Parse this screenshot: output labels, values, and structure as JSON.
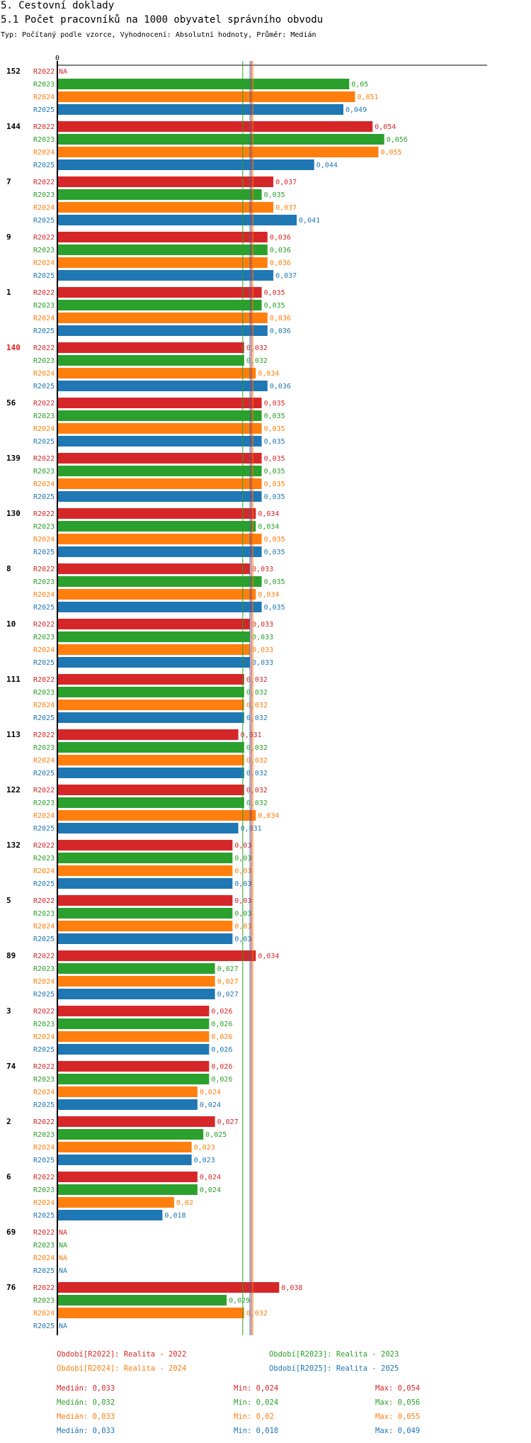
{
  "header": {
    "section": "5. Cestovní doklady",
    "title": "5.1 Počet pracovníků na 1000 obyvatel správního obvodu",
    "subtitle": "Typ: Počítaný podle vzorce, Vyhodnocení: Absolutní hodnoty, Průměr: Medián"
  },
  "colors": {
    "R2022": "#d62728",
    "R2023": "#2ca02c",
    "R2024": "#ff7f0e",
    "R2025": "#1f77b4",
    "highlight": "#e41a1c"
  },
  "chart_data": {
    "type": "bar",
    "orientation": "horizontal",
    "axis_zero_label": "0",
    "series_names": [
      "R2022",
      "R2023",
      "R2024",
      "R2025"
    ],
    "na_label": "NA",
    "groups": [
      {
        "label": "152",
        "highlight": false,
        "values": [
          null,
          0.05,
          0.051,
          0.049
        ],
        "labels": [
          "NA",
          "0,05",
          "0,051",
          "0,049"
        ]
      },
      {
        "label": "144",
        "highlight": false,
        "values": [
          0.054,
          0.056,
          0.055,
          0.044
        ],
        "labels": [
          "0,054",
          "0,056",
          "0,055",
          "0,044"
        ]
      },
      {
        "label": "7",
        "highlight": false,
        "values": [
          0.037,
          0.035,
          0.037,
          0.041
        ],
        "labels": [
          "0,037",
          "0,035",
          "0,037",
          "0,041"
        ]
      },
      {
        "label": "9",
        "highlight": false,
        "values": [
          0.036,
          0.036,
          0.036,
          0.037
        ],
        "labels": [
          "0,036",
          "0,036",
          "0,036",
          "0,037"
        ]
      },
      {
        "label": "1",
        "highlight": false,
        "values": [
          0.035,
          0.035,
          0.036,
          0.036
        ],
        "labels": [
          "0,035",
          "0,035",
          "0,036",
          "0,036"
        ]
      },
      {
        "label": "140",
        "highlight": true,
        "values": [
          0.032,
          0.032,
          0.034,
          0.036
        ],
        "labels": [
          "0,032",
          "0,032",
          "0,034",
          "0,036"
        ]
      },
      {
        "label": "56",
        "highlight": false,
        "values": [
          0.035,
          0.035,
          0.035,
          0.035
        ],
        "labels": [
          "0,035",
          "0,035",
          "0,035",
          "0,035"
        ]
      },
      {
        "label": "139",
        "highlight": false,
        "values": [
          0.035,
          0.035,
          0.035,
          0.035
        ],
        "labels": [
          "0,035",
          "0,035",
          "0,035",
          "0,035"
        ]
      },
      {
        "label": "130",
        "highlight": false,
        "values": [
          0.034,
          0.034,
          0.035,
          0.035
        ],
        "labels": [
          "0,034",
          "0,034",
          "0,035",
          "0,035"
        ]
      },
      {
        "label": "8",
        "highlight": false,
        "values": [
          0.033,
          0.035,
          0.034,
          0.035
        ],
        "labels": [
          "0,033",
          "0,035",
          "0,034",
          "0,035"
        ]
      },
      {
        "label": "10",
        "highlight": false,
        "values": [
          0.033,
          0.033,
          0.033,
          0.033
        ],
        "labels": [
          "0,033",
          "0,033",
          "0,033",
          "0,033"
        ]
      },
      {
        "label": "111",
        "highlight": false,
        "values": [
          0.032,
          0.032,
          0.032,
          0.032
        ],
        "labels": [
          "0,032",
          "0,032",
          "0,032",
          "0,032"
        ]
      },
      {
        "label": "113",
        "highlight": false,
        "values": [
          0.031,
          0.032,
          0.032,
          0.032
        ],
        "labels": [
          "0,031",
          "0,032",
          "0,032",
          "0,032"
        ]
      },
      {
        "label": "122",
        "highlight": false,
        "values": [
          0.032,
          0.032,
          0.034,
          0.031
        ],
        "labels": [
          "0,032",
          "0,032",
          "0,034",
          "0,031"
        ]
      },
      {
        "label": "132",
        "highlight": false,
        "values": [
          0.03,
          0.03,
          0.03,
          0.03
        ],
        "labels": [
          "0,03",
          "0,03",
          "0,03",
          "0,03"
        ]
      },
      {
        "label": "5",
        "highlight": false,
        "values": [
          0.03,
          0.03,
          0.03,
          0.03
        ],
        "labels": [
          "0,03",
          "0,03",
          "0,03",
          "0,03"
        ]
      },
      {
        "label": "89",
        "highlight": false,
        "values": [
          0.034,
          0.027,
          0.027,
          0.027
        ],
        "labels": [
          "0,034",
          "0,027",
          "0,027",
          "0,027"
        ]
      },
      {
        "label": "3",
        "highlight": false,
        "values": [
          0.026,
          0.026,
          0.026,
          0.026
        ],
        "labels": [
          "0,026",
          "0,026",
          "0,026",
          "0,026"
        ]
      },
      {
        "label": "74",
        "highlight": false,
        "values": [
          0.026,
          0.026,
          0.024,
          0.024
        ],
        "labels": [
          "0,026",
          "0,026",
          "0,024",
          "0,024"
        ]
      },
      {
        "label": "2",
        "highlight": false,
        "values": [
          0.027,
          0.025,
          0.023,
          0.023
        ],
        "labels": [
          "0,027",
          "0,025",
          "0,023",
          "0,023"
        ]
      },
      {
        "label": "6",
        "highlight": false,
        "values": [
          0.024,
          0.024,
          0.02,
          0.018
        ],
        "labels": [
          "0,024",
          "0,024",
          "0,02",
          "0,018"
        ]
      },
      {
        "label": "69",
        "highlight": false,
        "values": [
          null,
          null,
          null,
          null
        ],
        "labels": [
          "NA",
          "NA",
          "NA",
          "NA"
        ]
      },
      {
        "label": "76",
        "highlight": false,
        "values": [
          0.038,
          0.029,
          0.032,
          null
        ],
        "labels": [
          "0,038",
          "0,029",
          "0,032",
          "NA"
        ]
      }
    ],
    "median_lines": [
      {
        "series": "R2022",
        "value": 0.033
      },
      {
        "series": "R2023",
        "value": 0.032
      },
      {
        "series": "R2024",
        "value": 0.033
      },
      {
        "series": "R2025",
        "value": 0.033
      }
    ],
    "legend": [
      {
        "series": "R2022",
        "text": "Období[R2022]: Realita - 2022"
      },
      {
        "series": "R2023",
        "text": "Období[R2023]: Realita - 2023"
      },
      {
        "series": "R2024",
        "text": "Období[R2024]: Realita - 2024"
      },
      {
        "series": "R2025",
        "text": "Období[R2025]: Realita - 2025"
      }
    ],
    "stats": [
      {
        "series": "R2022",
        "median": "Medián: 0,033",
        "min": "Min: 0,024",
        "max": "Max: 0,054"
      },
      {
        "series": "R2023",
        "median": "Medián: 0,032",
        "min": "Min: 0,024",
        "max": "Max: 0,056"
      },
      {
        "series": "R2024",
        "median": "Medián: 0,033",
        "min": "Min: 0,02",
        "max": "Max: 0,055"
      },
      {
        "series": "R2025",
        "median": "Medián: 0,033",
        "min": "Min: 0,018",
        "max": "Max: 0,049"
      }
    ]
  }
}
